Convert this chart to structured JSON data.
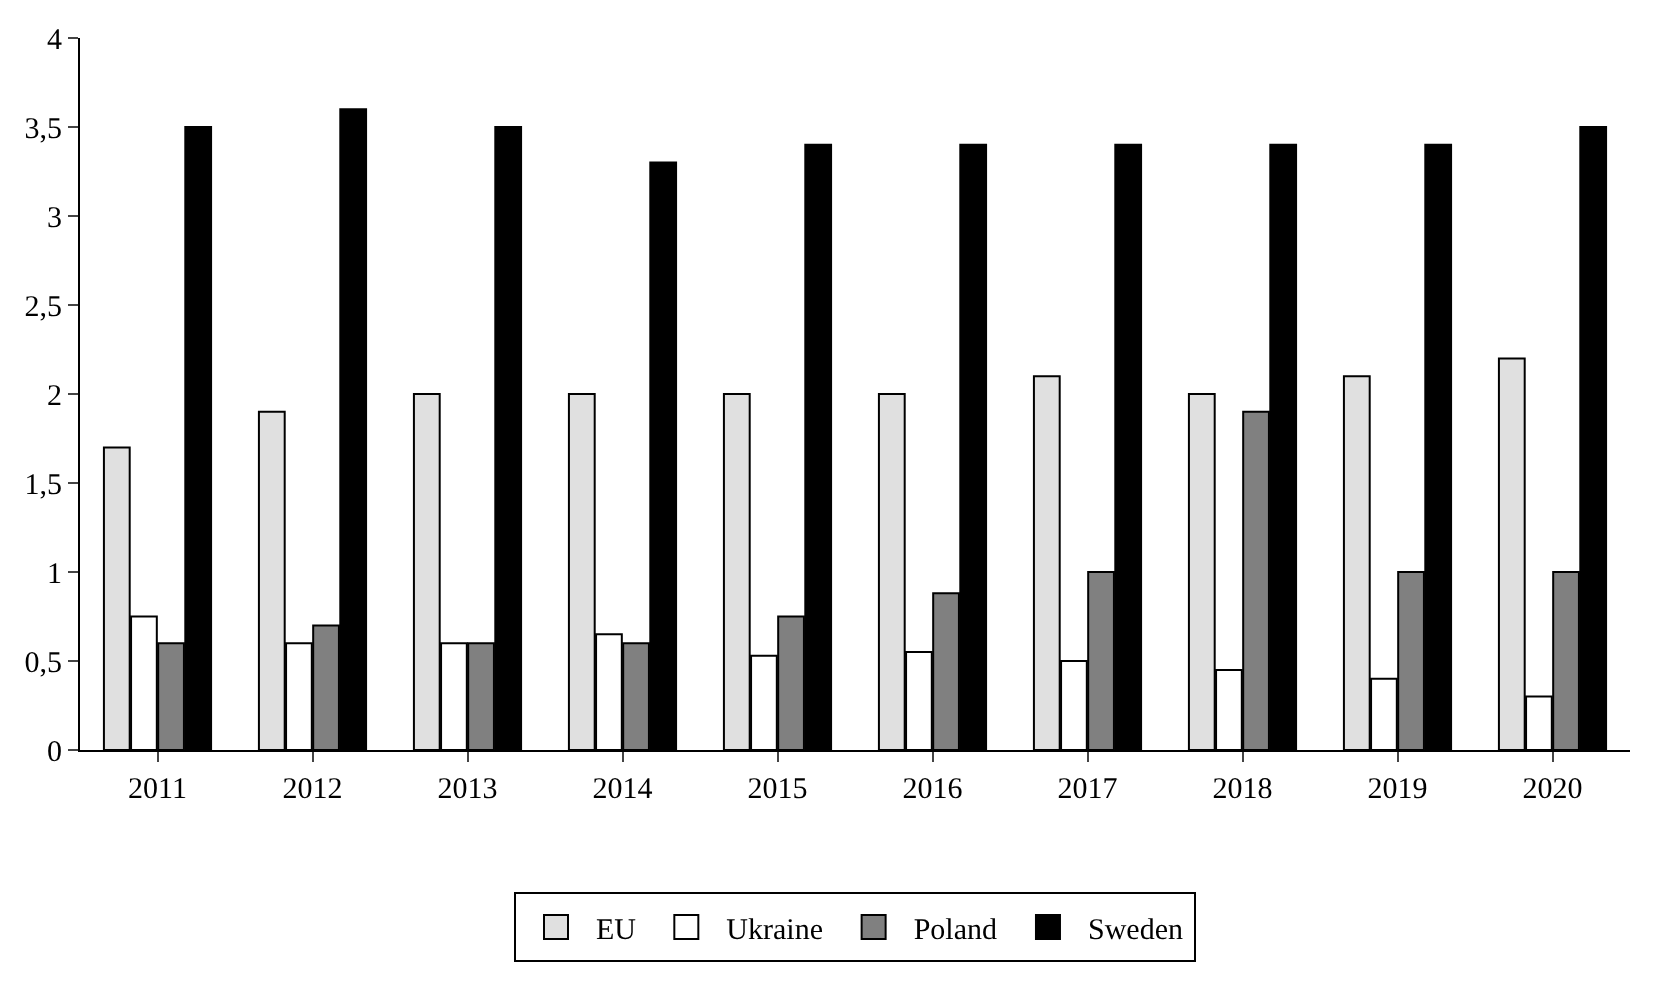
{
  "chart_data": {
    "type": "bar",
    "categories": [
      "2011",
      "2012",
      "2013",
      "2014",
      "2015",
      "2016",
      "2017",
      "2018",
      "2019",
      "2020"
    ],
    "series": [
      {
        "name": "EU",
        "color": "#e0e0e0",
        "values": [
          1.7,
          1.9,
          2.0,
          2.0,
          2.0,
          2.0,
          2.1,
          2.0,
          2.1,
          2.2
        ]
      },
      {
        "name": "Ukraine",
        "color": "#ffffff",
        "values": [
          0.75,
          0.6,
          0.6,
          0.65,
          0.53,
          0.55,
          0.5,
          0.45,
          0.4,
          0.3
        ]
      },
      {
        "name": "Poland",
        "color": "#808080",
        "values": [
          0.6,
          0.7,
          0.6,
          0.6,
          0.75,
          0.88,
          1.0,
          1.9,
          1.0,
          1.0
        ]
      },
      {
        "name": "Sweden",
        "color": "#000000",
        "values": [
          3.5,
          3.6,
          3.5,
          3.3,
          3.4,
          3.4,
          3.4,
          3.4,
          3.4,
          3.5
        ]
      }
    ],
    "ylim": [
      0,
      4
    ],
    "yticks": [
      0,
      {
        "value": 0.5,
        "label": "0,5"
      },
      1,
      {
        "value": 1.5,
        "label": "1,5"
      },
      2,
      {
        "value": 2.5,
        "label": "2,5"
      },
      3,
      {
        "value": 3.5,
        "label": "3,5"
      },
      4
    ],
    "legend": "bottom"
  }
}
